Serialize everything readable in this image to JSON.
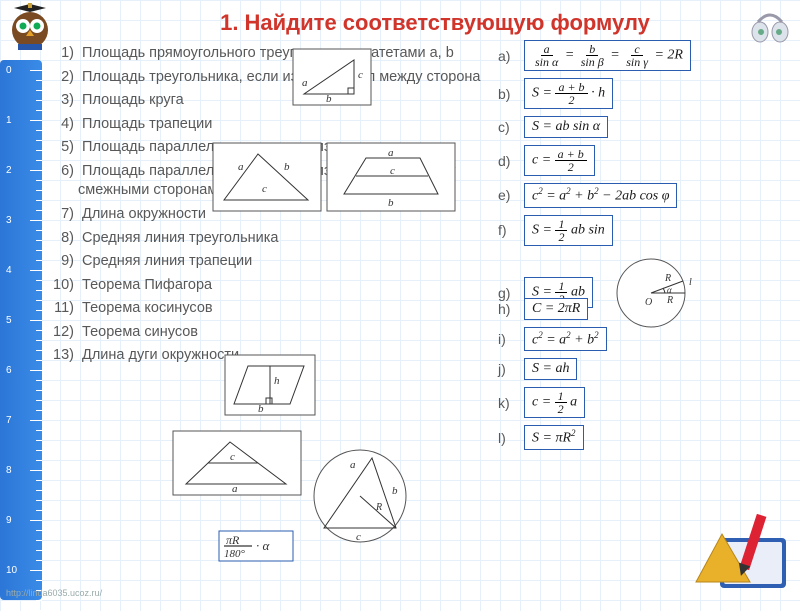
{
  "title": "1. Найдите соответствующую формулу",
  "footer_url": "http://linda6035.ucoz.ru/",
  "ruler": {
    "start": 0,
    "end": 10
  },
  "questions": [
    "Площадь прямоугольного треугольника с катетами a, b",
    "Площадь треугольника, если известен угол между сторона",
    "Площадь круга",
    "Площадь трапеции",
    "Площадь параллелограмма, если известна высота",
    "Площадь параллелограмма, если известен угол между смежными сторонами",
    "Длина окружности",
    "Средняя линия треугольника",
    "Средняя линия трапеции",
    "Теорема Пифагора",
    "Теорема косинусов",
    "Теорема синусов",
    "Длина дуги окружности"
  ],
  "answers": {
    "a": "a/sin α = b/sin β = c/sin γ = 2R",
    "b": "S = (a+b)/2 · h",
    "c": "S = ab sin α",
    "d": "c = (a+b)/2",
    "e": "c² = a² + b² − 2ab cos φ",
    "f": "S = ½ ab sin",
    "g": "S = ½ ab",
    "h": "C = 2πR",
    "i": "c² = a² + b²",
    "j": "S = ah",
    "k": "c = ½ a",
    "l": "S = πR²",
    "arc": "πR/180° · α"
  },
  "colors": {
    "title": "#d0342a",
    "text": "#585858",
    "formula_border": "#2a5db0",
    "ruler": "#3a8be8",
    "grid": "#e6f0fa"
  }
}
